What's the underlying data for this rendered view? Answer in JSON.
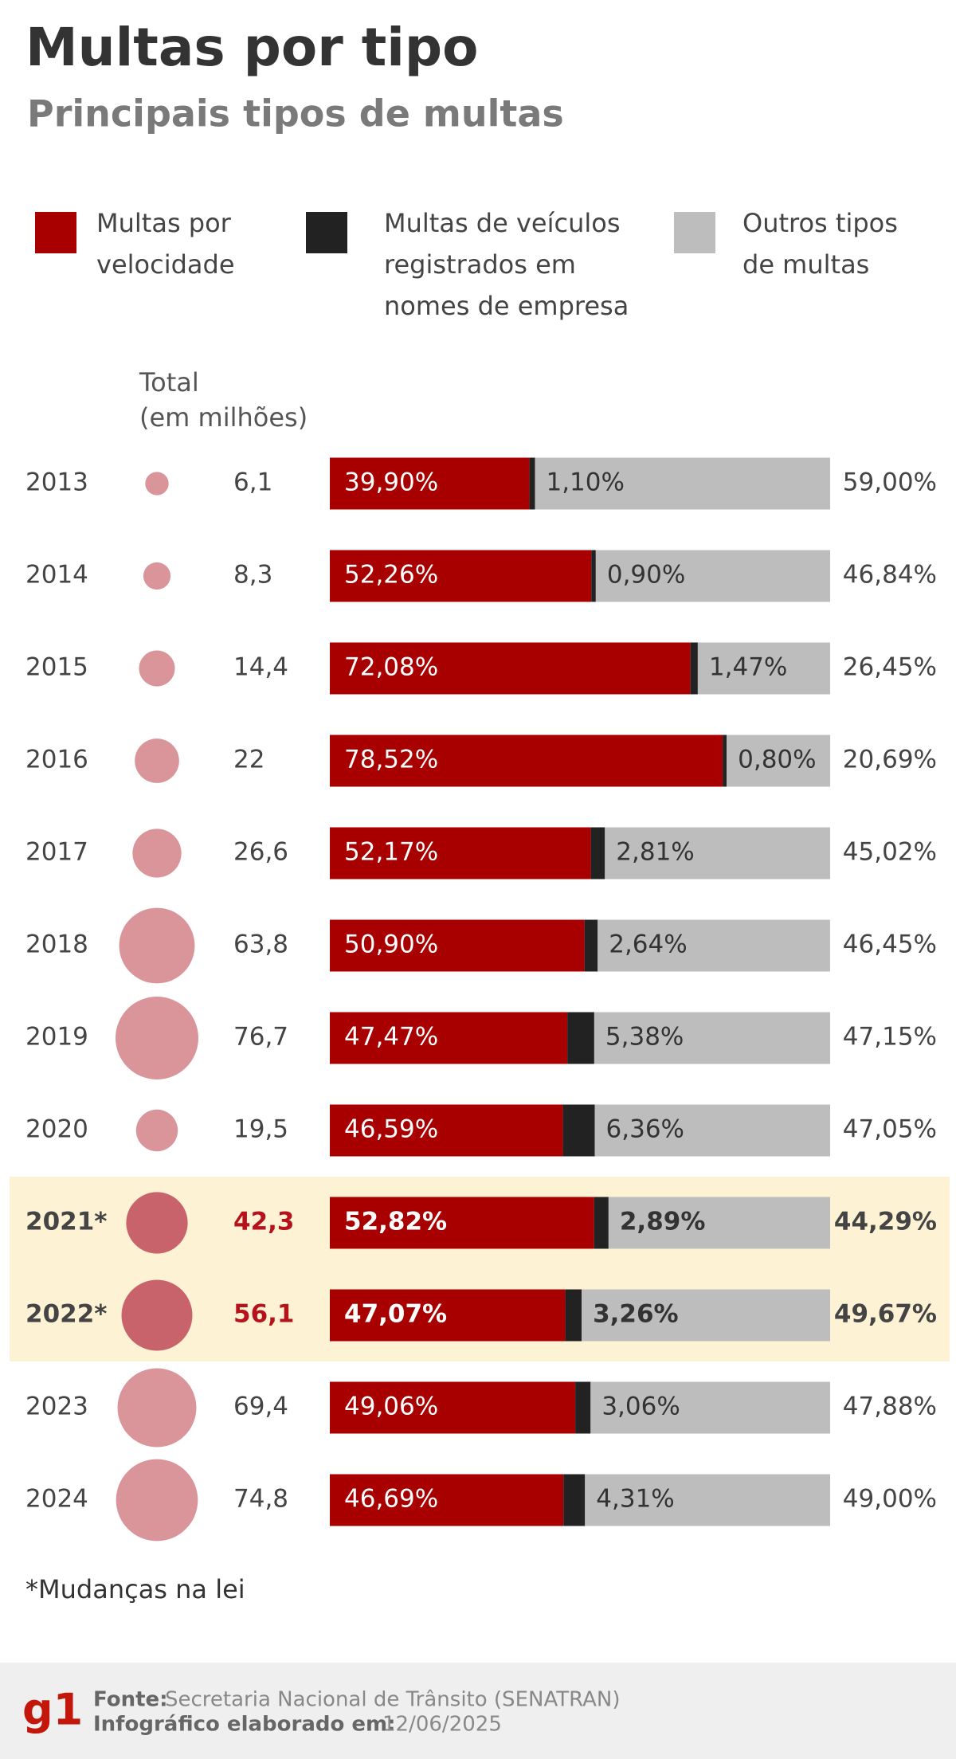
{
  "chart_data": {
    "type": "stacked_bar",
    "title": "Multas por tipo",
    "subtitle": "Principais tipos de multas",
    "total_label": "Total\n(em milhões)",
    "categories": [
      "2013",
      "2014",
      "2015",
      "2016",
      "2017",
      "2018",
      "2019",
      "2020",
      "2021*",
      "2022*",
      "2023",
      "2024"
    ],
    "emphasis": [
      8,
      9
    ],
    "totals": {
      "values": [
        6.1,
        8.3,
        14.4,
        22,
        26.6,
        63.8,
        76.7,
        19.5,
        42.3,
        56.1,
        69.4,
        74.8
      ],
      "value_labels": [
        "6,1",
        "8,3",
        "14,4",
        "22",
        "26,6",
        "63,8",
        "76,7",
        "19,5",
        "42,3",
        "56,1",
        "69,4",
        "74,8"
      ],
      "color": "#d9959a",
      "emphasis_color": "#c9636b"
    },
    "series": [
      {
        "name": "Multas por velocidade",
        "color": "#a80000",
        "values": [
          39.9,
          52.26,
          72.08,
          78.52,
          52.17,
          50.9,
          47.47,
          46.59,
          52.82,
          47.07,
          49.06,
          46.69
        ],
        "value_labels": [
          "39,90%",
          "52,26%",
          "72,08%",
          "78,52%",
          "52,17%",
          "50,90%",
          "47,47%",
          "46,59%",
          "52,82%",
          "47,07%",
          "49,06%",
          "46,69%"
        ]
      },
      {
        "name": "Multas de veículos registrados em nomes de empresa",
        "color": "#222222",
        "values": [
          1.1,
          0.9,
          1.47,
          0.8,
          2.81,
          2.64,
          5.38,
          6.36,
          2.89,
          3.26,
          3.06,
          4.31
        ],
        "value_labels": [
          "1,10%",
          "0,90%",
          "1,47%",
          "0,80%",
          "2,81%",
          "2,64%",
          "5,38%",
          "6,36%",
          "2,89%",
          "3,26%",
          "3,06%",
          "4,31%"
        ]
      },
      {
        "name": "Outros tipos de multas",
        "color": "#bdbdbd",
        "values": [
          59.0,
          46.84,
          26.45,
          20.69,
          45.02,
          46.45,
          47.15,
          47.05,
          44.29,
          49.67,
          47.88,
          49.0
        ],
        "value_labels": [
          "59,00%",
          "46,84%",
          "26,45%",
          "20,69%",
          "45,02%",
          "46,45%",
          "47,15%",
          "47,05%",
          "44,29%",
          "49,67%",
          "47,88%",
          "49,00%"
        ]
      }
    ],
    "xlim": [
      0,
      100
    ],
    "footnote": "*Mudanças na lei",
    "logo": "g1",
    "source_label": "Fonte:",
    "source": "Secretaria Nacional de Trânsito (SENATRAN)",
    "date_label": "Infográfico elaborado em:",
    "date": "12/06/2025"
  }
}
